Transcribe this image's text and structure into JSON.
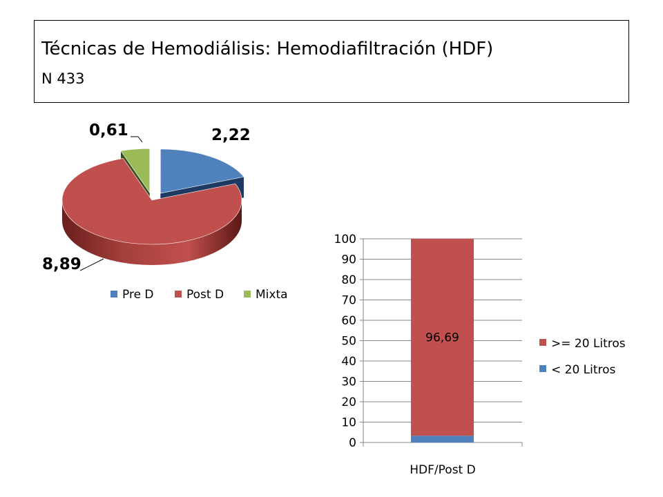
{
  "header": {
    "title": "Técnicas de Hemodiálisis: Hemodiafiltración (HDF)",
    "subtitle": "N 433"
  },
  "chart_data": [
    {
      "type": "pie",
      "title": "",
      "style": "3d-exploded",
      "categories": [
        "Pre D",
        "Post D",
        "Mixta"
      ],
      "values": [
        2.22,
        8.89,
        0.61
      ],
      "value_labels": [
        "2,22",
        "8,89",
        "0,61"
      ],
      "colors": [
        "#4F81BD",
        "#C0504D",
        "#9BBB59"
      ],
      "legend": {
        "position": "bottom",
        "entries": [
          "Pre D",
          "Post D",
          "Mixta"
        ]
      }
    },
    {
      "type": "bar",
      "stacked": true,
      "title": "",
      "categories": [
        "HDF/Post D"
      ],
      "series": [
        {
          "name": "< 20 Litros",
          "values": [
            3.31
          ],
          "color": "#4F81BD"
        },
        {
          "name": ">= 20 Litros",
          "values": [
            96.69
          ],
          "color": "#C0504D"
        }
      ],
      "data_labels": {
        "series": ">= 20 Litros",
        "text": "96,69"
      },
      "ylim": [
        0,
        100
      ],
      "yticks": [
        "0",
        "10",
        "20",
        "30",
        "40",
        "50",
        "60",
        "70",
        "80",
        "90",
        "100"
      ],
      "grid": true,
      "xlabel": "",
      "ylabel": "",
      "legend": {
        "position": "right",
        "entries": [
          ">= 20 Litros",
          "< 20 Litros"
        ]
      }
    }
  ]
}
